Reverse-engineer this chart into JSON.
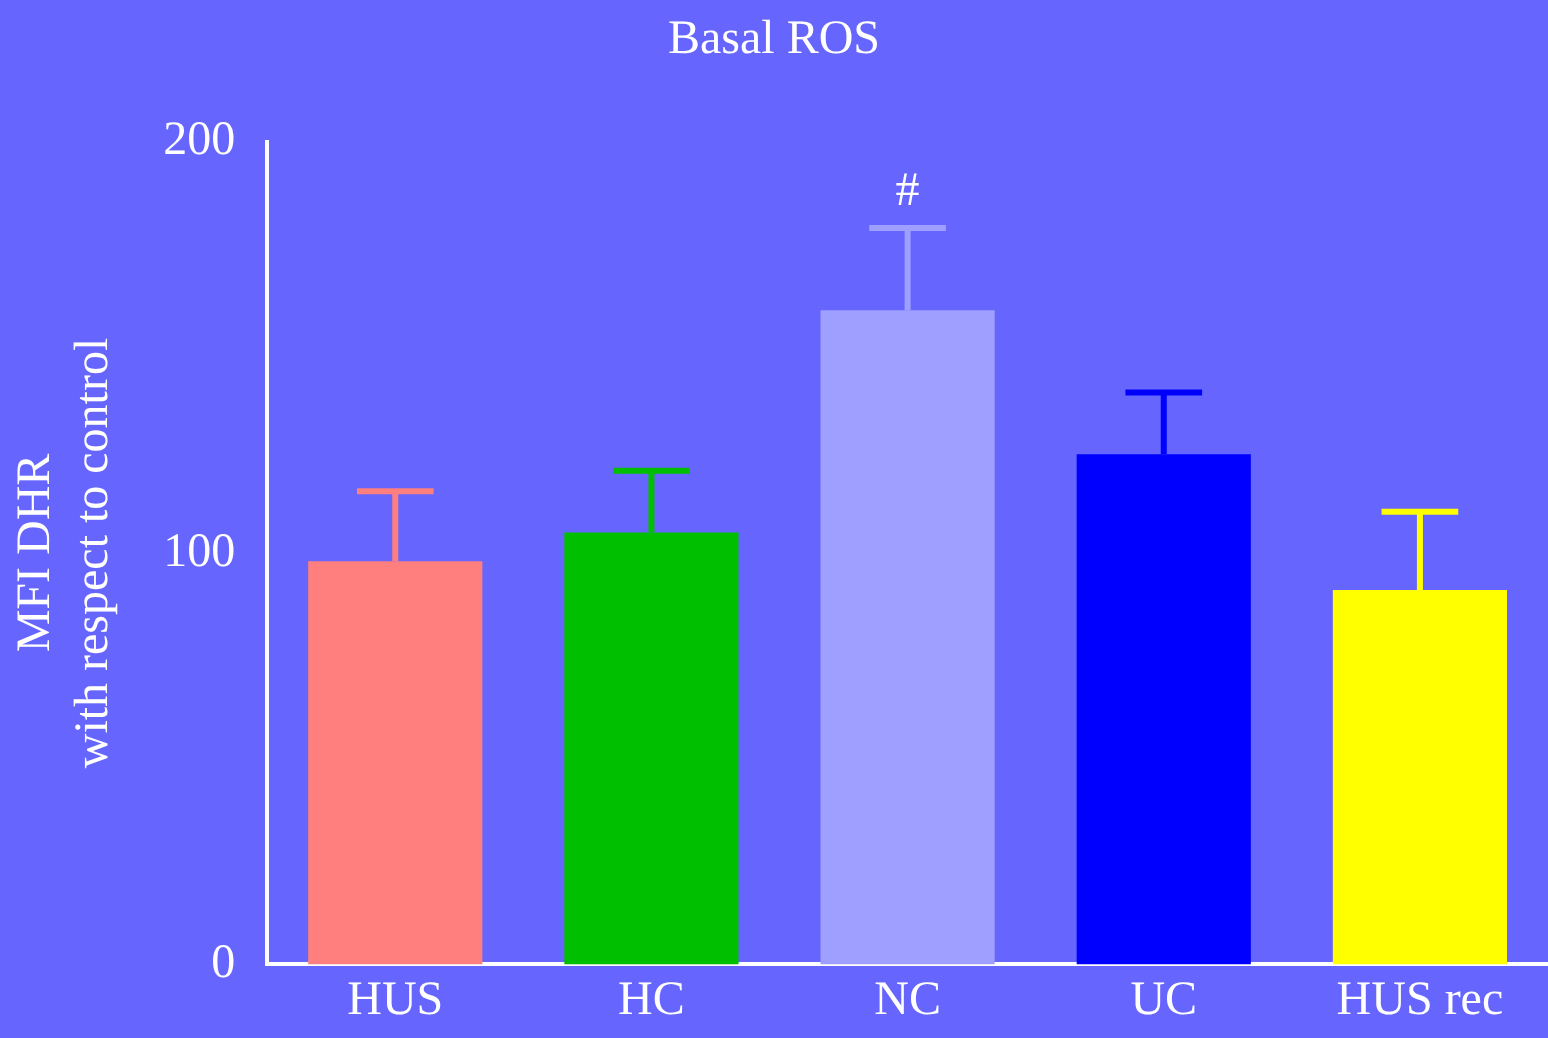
{
  "chart_data": {
    "type": "bar",
    "title": "Basal ROS",
    "ylabel": "MFI DHR\nwith respect to control",
    "categories": [
      "HUS",
      "HC",
      "NC",
      "UC",
      "HUS rec"
    ],
    "values": [
      98,
      105,
      159,
      124,
      91
    ],
    "colors": [
      "#ff7f7f",
      "#00bf00",
      "#9f9fff",
      "#0000ff",
      "#ffff00"
    ],
    "errors": [
      [
        98,
        115
      ],
      [
        105,
        120
      ],
      [
        159,
        179
      ],
      [
        124,
        139
      ],
      [
        91,
        110
      ]
    ],
    "ylim": [
      0,
      200
    ],
    "yticks": [
      0,
      100,
      200
    ],
    "grid": false,
    "legend": false,
    "annotations": [
      {
        "text": "#",
        "x": "NC",
        "y": 179
      }
    ]
  }
}
